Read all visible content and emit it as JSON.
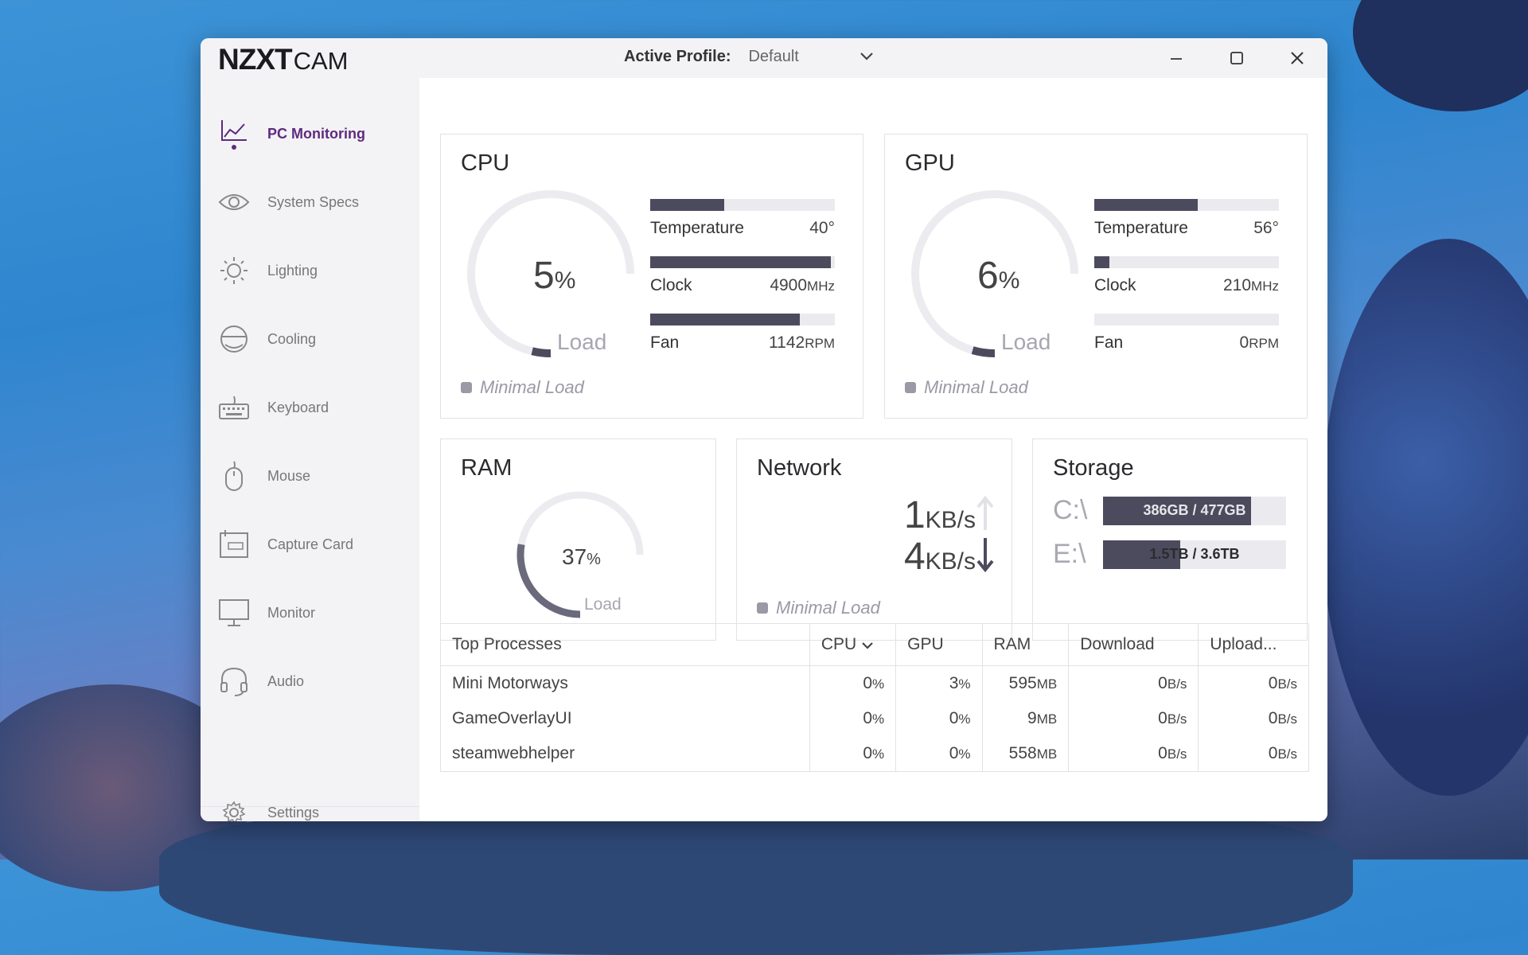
{
  "app": {
    "brand": "NZXT",
    "product": "CAM"
  },
  "profile": {
    "label": "Active Profile:",
    "value": "Default"
  },
  "colors": {
    "accent": "#5e2a7e",
    "bar": "#4c4b5e",
    "track": "#ebebef"
  },
  "sidebar": {
    "items": [
      {
        "label": "PC Monitoring",
        "icon": "chart-line-icon",
        "active": true
      },
      {
        "label": "System Specs",
        "icon": "eye-icon"
      },
      {
        "label": "Lighting",
        "icon": "sun-icon"
      },
      {
        "label": "Cooling",
        "icon": "cooler-icon"
      },
      {
        "label": "Keyboard",
        "icon": "keyboard-icon"
      },
      {
        "label": "Mouse",
        "icon": "mouse-icon"
      },
      {
        "label": "Capture Card",
        "icon": "capture-card-icon"
      },
      {
        "label": "Monitor",
        "icon": "monitor-icon"
      },
      {
        "label": "Audio",
        "icon": "headset-icon"
      }
    ],
    "settings": "Settings"
  },
  "cpu": {
    "title": "CPU",
    "load_value": "5",
    "load_unit": "%",
    "load_label": "Load",
    "load_fraction": 0.05,
    "temp": {
      "label": "Temperature",
      "value": "40°",
      "fraction": 0.4
    },
    "clock": {
      "label": "Clock",
      "value": "4900",
      "unit": "MHz",
      "fraction": 0.98
    },
    "fan": {
      "label": "Fan",
      "value": "1142",
      "unit": "RPM",
      "fraction": 0.81
    },
    "status": "Minimal Load"
  },
  "gpu": {
    "title": "GPU",
    "load_value": "6",
    "load_unit": "%",
    "load_label": "Load",
    "load_fraction": 0.06,
    "temp": {
      "label": "Temperature",
      "value": "56°",
      "fraction": 0.56
    },
    "clock": {
      "label": "Clock",
      "value": "210",
      "unit": "MHz",
      "fraction": 0.08
    },
    "fan": {
      "label": "Fan",
      "value": "0",
      "unit": "RPM",
      "fraction": 0.0
    },
    "status": "Minimal Load"
  },
  "ram": {
    "title": "RAM",
    "load_value": "37",
    "load_unit": "%",
    "load_label": "Load",
    "load_fraction": 0.37
  },
  "network": {
    "title": "Network",
    "up_value": "1",
    "down_value": "4",
    "unit": "KB/s",
    "status": "Minimal Load"
  },
  "storage": {
    "title": "Storage",
    "drives": [
      {
        "name": "C:\\",
        "text": "386GB / 477GB",
        "fraction": 0.81
      },
      {
        "name": "E:\\",
        "text": "1.5TB / 3.6TB",
        "fraction": 0.42
      }
    ]
  },
  "processes": {
    "headers": [
      "Top Processes",
      "CPU",
      "GPU",
      "RAM",
      "Download",
      "Upload..."
    ],
    "rows": [
      {
        "name": "Mini Motorways",
        "cpu": "0",
        "gpu": "3",
        "ram": "595",
        "ram_unit": "MB",
        "down": "0",
        "up": "0"
      },
      {
        "name": "GameOverlayUI",
        "cpu": "0",
        "gpu": "0",
        "ram": "9",
        "ram_unit": "MB",
        "down": "0",
        "up": "0"
      },
      {
        "name": "steamwebhelper",
        "cpu": "0",
        "gpu": "0",
        "ram": "558",
        "ram_unit": "MB",
        "down": "0",
        "up": "0"
      }
    ],
    "pct_unit": "%",
    "rate_unit": "B/s"
  }
}
